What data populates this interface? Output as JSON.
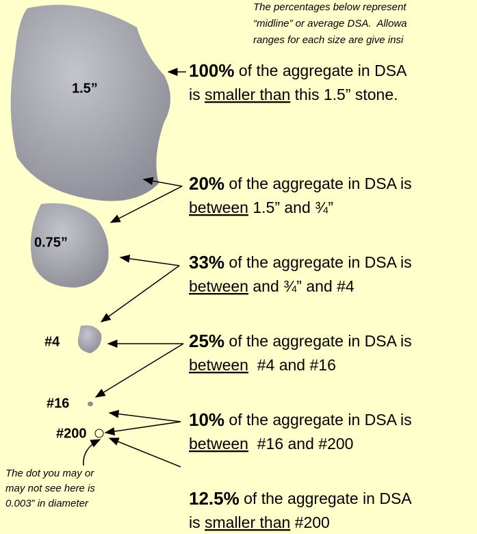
{
  "note": {
    "lines": [
      "The percentages below represent",
      "“midline” or average DSA.  Allowa",
      "ranges for each size are give insi"
    ]
  },
  "stones": [
    {
      "label": "1.5”"
    },
    {
      "label": "0.75”"
    },
    {
      "label": "#4"
    },
    {
      "label": "#16"
    },
    {
      "label": "#200"
    }
  ],
  "statements": [
    {
      "percent": "100%",
      "line1": " of the aggregate in DSA",
      "line2_pre": "is ",
      "line2_underline": "smaller than",
      "line2_post": " this 1.5” stone."
    },
    {
      "percent": "20%",
      "line1": " of the aggregate in DSA is",
      "line2_underline": "between",
      "line2_post": " 1.5” and ¾”"
    },
    {
      "percent": "33%",
      "line1": " of the aggregate in DSA is",
      "line2_underline": "between",
      "line2_post": " and ¾” and #4"
    },
    {
      "percent": "25%",
      "line1": " of the aggregate in DSA is",
      "line2_underline": "between",
      "line2_post": "  #4 and #16"
    },
    {
      "percent": "10%",
      "line1": " of the aggregate in DSA is",
      "line2_underline": "between",
      "line2_post": "  #16 and #200"
    },
    {
      "percent": "12.5%",
      "line1": " of the aggregate in DSA",
      "line2_pre": "is ",
      "line2_underline": "smaller than",
      "line2_post": " #200"
    }
  ],
  "footnote": {
    "lines": [
      "The dot you may or",
      "may not see here is",
      "0.003” in diameter"
    ]
  }
}
